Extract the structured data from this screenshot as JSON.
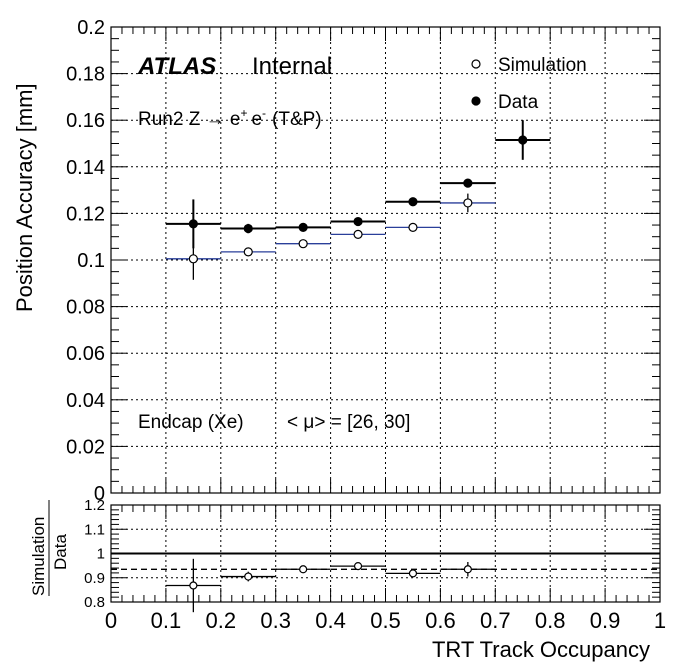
{
  "labels": {
    "atlas": "ATLAS",
    "internal": "Internal",
    "process_prefix": "Run2 Z → e",
    "process_plus": "+",
    "process_e": "e",
    "process_minus": "-",
    "process_suffix": "(T&P)",
    "region": "Endcap (Xe)",
    "pileup": "< μ> = [26, 30]",
    "ratio_label_top": "Simulation",
    "ratio_label_bottom": "Data"
  },
  "chart_data": [
    {
      "type": "scatter",
      "xlabel": "",
      "ylabel": "Position Accuracy [mm]",
      "xlim": [
        0,
        1
      ],
      "ylim": [
        0,
        0.2
      ],
      "grid": true,
      "legend": "top-right",
      "yticks": [
        "0",
        "0.02",
        "0.04",
        "0.06",
        "0.08",
        "0.1",
        "0.12",
        "0.14",
        "0.16",
        "0.18",
        "0.2"
      ],
      "series": [
        {
          "name": "Simulation",
          "marker": "open-circle",
          "x": [
            0.15,
            0.25,
            0.35,
            0.45,
            0.55,
            0.65
          ],
          "y": [
            0.1005,
            0.1035,
            0.107,
            0.111,
            0.114,
            0.1245
          ],
          "yerr": [
            0.009,
            0.001,
            0.001,
            0.001,
            0.001,
            0.004
          ],
          "xerr": 0.05,
          "line_color": "#2a3f9a"
        },
        {
          "name": "Data",
          "marker": "filled-circle",
          "x": [
            0.15,
            0.25,
            0.35,
            0.45,
            0.55,
            0.65,
            0.75
          ],
          "y": [
            0.1155,
            0.1135,
            0.114,
            0.1165,
            0.125,
            0.133,
            0.1515
          ],
          "yerr": [
            0.0105,
            0.002,
            0.001,
            0.001,
            0.001,
            0.001,
            0.0085
          ],
          "xerr": 0.05,
          "line_color": "#000000"
        }
      ]
    },
    {
      "type": "scatter",
      "xlabel": "TRT Track Occupancy",
      "ylabel": "Simulation / Data",
      "xlim": [
        0,
        1
      ],
      "ylim": [
        0.8,
        1.2
      ],
      "grid": true,
      "xticks": [
        "0",
        "0.1",
        "0.2",
        "0.3",
        "0.4",
        "0.5",
        "0.6",
        "0.7",
        "0.8",
        "0.9",
        "1"
      ],
      "yticks": [
        "0.8",
        "0.9",
        "1",
        "1.1",
        "1.2"
      ],
      "reference_lines": [
        {
          "y": 1.0,
          "style": "solid"
        },
        {
          "y": 0.935,
          "style": "dashed"
        }
      ],
      "series": [
        {
          "name": "Simulation/Data",
          "marker": "open-circle",
          "x": [
            0.15,
            0.25,
            0.35,
            0.45,
            0.55,
            0.65
          ],
          "y": [
            0.868,
            0.905,
            0.935,
            0.948,
            0.918,
            0.935
          ],
          "yerr": [
            0.11,
            0.02,
            0.008,
            0.008,
            0.008,
            0.03
          ],
          "xerr": 0.05
        }
      ]
    }
  ]
}
